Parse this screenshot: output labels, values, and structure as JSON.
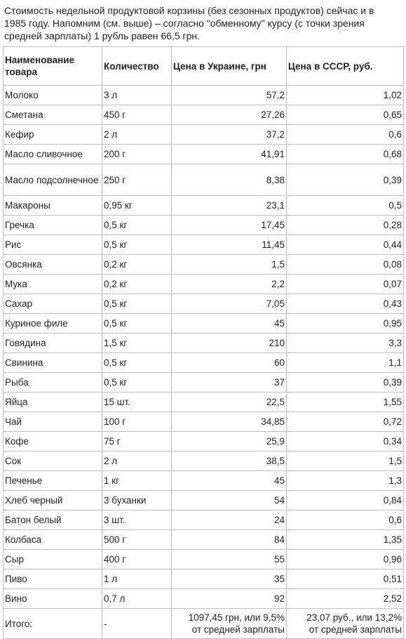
{
  "intro_text": "Стоимость недельной продуктовой корзины (без сезонных продуктов) сейчас и в 1985 году. Напомним (см. выше) – согласно \"обменному\" курсу (с точки зрения средней зарплаты) 1 рубль равен 66,5 грн.",
  "headers": {
    "name": "Наименование товара",
    "qty": "Количество",
    "price_ua": "Цена в Украине, грн",
    "price_ussr": "Цена в СССР, руб."
  },
  "rows": [
    {
      "name": "Молоко",
      "qty": "3 л",
      "ua": "57,2",
      "ussr": "1,02"
    },
    {
      "name": "Сметана",
      "qty": "450 г",
      "ua": "27,26",
      "ussr": "0,65"
    },
    {
      "name": "Кефир",
      "qty": "2 л",
      "ua": "37,2",
      "ussr": "0,6"
    },
    {
      "name": "Масло сливочное",
      "qty": "200 г",
      "ua": "41,91",
      "ussr": "0,68"
    },
    {
      "name": "Масло подсолнечное",
      "qty": "250 г",
      "ua": "8,38",
      "ussr": "0,39"
    },
    {
      "name": "Макароны",
      "qty": "0,95 кг",
      "ua": "23,1",
      "ussr": "0,5"
    },
    {
      "name": "Гречка",
      "qty": "0,5 кг",
      "ua": "17,45",
      "ussr": "0,28"
    },
    {
      "name": "Рис",
      "qty": "0,5 кг",
      "ua": "11,45",
      "ussr": "0,44"
    },
    {
      "name": "Овсянка",
      "qty": "0,2 кг",
      "ua": "1,5",
      "ussr": "0,08"
    },
    {
      "name": "Мука",
      "qty": "0,2 кг",
      "ua": "2,2",
      "ussr": "0,07"
    },
    {
      "name": "Сахар",
      "qty": "0,5 кг",
      "ua": "7,05",
      "ussr": "0,43"
    },
    {
      "name": "Куриное филе",
      "qty": "0,5 кг",
      "ua": "45",
      "ussr": "0,95"
    },
    {
      "name": "Говядина",
      "qty": "1,5 кг",
      "ua": "210",
      "ussr": "3,3"
    },
    {
      "name": "Свинина",
      "qty": "0,5 кг",
      "ua": "60",
      "ussr": "1,1"
    },
    {
      "name": "Рыба",
      "qty": "0,5 кг",
      "ua": "37",
      "ussr": "0,39"
    },
    {
      "name": "Яйца",
      "qty": "15 шт.",
      "ua": "22,5",
      "ussr": "1,55"
    },
    {
      "name": "Чай",
      "qty": "100 г",
      "ua": "34,85",
      "ussr": "0,72"
    },
    {
      "name": "Кофе",
      "qty": "75 г",
      "ua": "25,9",
      "ussr": "0,34"
    },
    {
      "name": "Сок",
      "qty": "2 л",
      "ua": "38,5",
      "ussr": "1,5"
    },
    {
      "name": "Печенье",
      "qty": "1 кг",
      "ua": "45",
      "ussr": "1,3"
    },
    {
      "name": "Хлеб черный",
      "qty": "3 буханки",
      "ua": "54",
      "ussr": "0,84"
    },
    {
      "name": "Батон белый",
      "qty": "3 шт.",
      "ua": "24",
      "ussr": "0,6"
    },
    {
      "name": "Колбаса",
      "qty": "500 г",
      "ua": "84",
      "ussr": "1,35"
    },
    {
      "name": "Сыр",
      "qty": "400 г",
      "ua": "55",
      "ussr": "0,96"
    },
    {
      "name": "Пиво",
      "qty": "1 л",
      "ua": "35",
      "ussr": "0,51"
    },
    {
      "name": "Вино",
      "qty": "0,7 л",
      "ua": "92",
      "ussr": "2,52"
    }
  ],
  "total": {
    "name": "Итого:",
    "qty": "-",
    "ua_line1": "1097,45 грн, или 9,5%",
    "ua_line2": "от средней зарплаты",
    "ussr_line1": "23,07 руб., или 13,2%",
    "ussr_line2": "от средней зарплаты"
  }
}
